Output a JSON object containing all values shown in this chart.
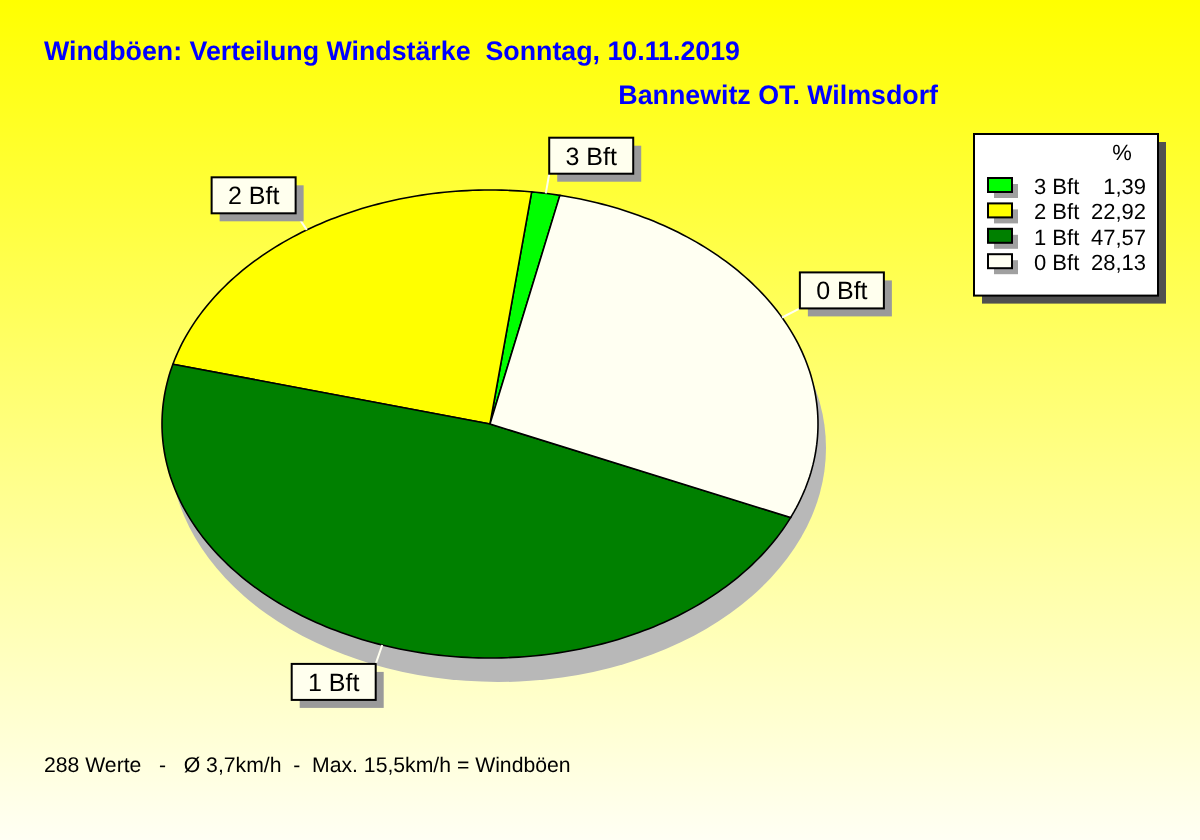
{
  "chart_data": {
    "type": "pie",
    "title": "Windböen: Verteilung Windstärke  Sonntag, 10.11.2019",
    "subtitle": "Bannewitz OT. Wilmsdorf",
    "categories": [
      "3 Bft",
      "2 Bft",
      "1 Bft",
      "0 Bft"
    ],
    "values": [
      1.39,
      22.92,
      47.57,
      28.13
    ],
    "colors": [
      "#00ff00",
      "#ffff00",
      "#008000",
      "#fffff2"
    ],
    "value_labels": [
      "1,39",
      "22,92",
      "47,57",
      "28,13"
    ],
    "legend": "top right",
    "legend_title": "%",
    "annotations": [
      "288 Werte   -   Ø 3,7km/h  -  Max. 15,5km/h = Windböen"
    ]
  }
}
